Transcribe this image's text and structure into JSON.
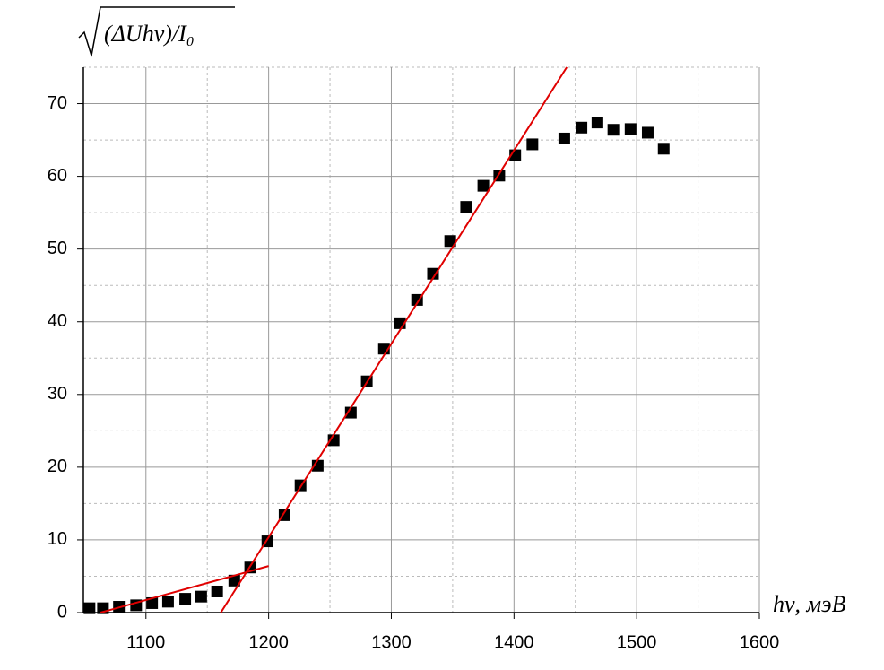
{
  "chart_data": {
    "type": "scatter",
    "y_label": "(ΔUhν)/I₀",
    "x_label": "hν, мэВ",
    "x": [
      1054,
      1065,
      1078,
      1092,
      1105,
      1118,
      1132,
      1145,
      1158,
      1172,
      1185,
      1199,
      1213,
      1226,
      1240,
      1253,
      1267,
      1280,
      1294,
      1307,
      1321,
      1334,
      1348,
      1361,
      1375,
      1388,
      1401,
      1415,
      1441,
      1455,
      1468,
      1481,
      1495,
      1509,
      1522
    ],
    "series": [
      {
        "color": "#000000",
        "values": [
          0.6,
          0.6,
          0.8,
          1.0,
          1.3,
          1.5,
          1.9,
          2.2,
          2.9,
          4.4,
          6.2,
          9.8,
          13.4,
          17.5,
          20.2,
          23.7,
          27.5,
          31.8,
          36.3,
          39.8,
          43.0,
          46.6,
          51.1,
          55.8,
          58.7,
          60.1,
          62.9,
          64.4,
          65.2,
          66.7,
          67.4,
          66.4,
          66.5,
          66.0,
          63.8
        ]
      }
    ],
    "fit_lines": [
      {
        "color": "#e00000",
        "x": [
          1063,
          1200
        ],
        "values": [
          0,
          6.4
        ]
      },
      {
        "color": "#e00000",
        "x": [
          1161,
          1443
        ],
        "values": [
          0,
          75
        ]
      }
    ],
    "xlim": [
      1049,
      1600
    ],
    "ylim": [
      0,
      75
    ],
    "xticks": [
      1100,
      1200,
      1300,
      1400,
      1500,
      1600
    ],
    "yticks": [
      0,
      10,
      20,
      30,
      40,
      50,
      60,
      70
    ],
    "x_minor_ticks": [
      1150,
      1250,
      1350,
      1450,
      1550
    ],
    "y_minor_ticks": [
      5,
      15,
      25,
      35,
      45,
      55,
      65,
      75
    ],
    "grid": true
  }
}
